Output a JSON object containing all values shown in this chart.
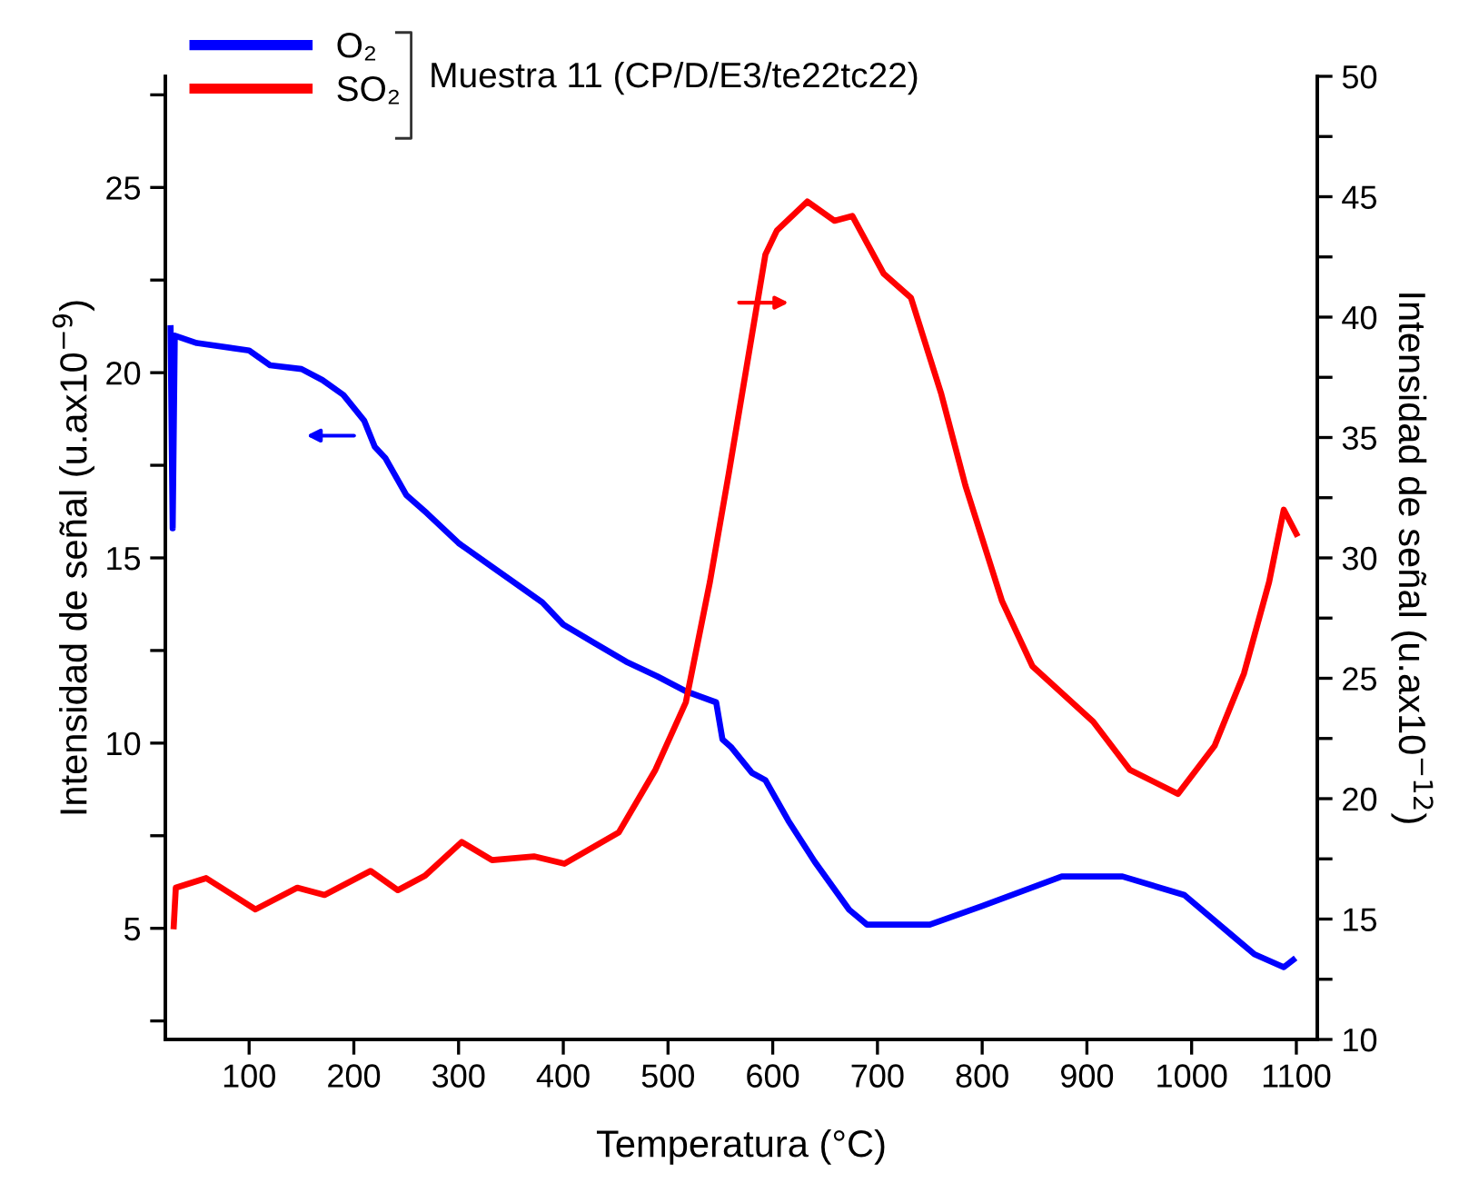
{
  "chart_data": {
    "type": "line",
    "xlabel": "Temperatura (°C)",
    "ylabel": "Intensidad de señal (u.ax10$^{−9}$)",
    "y2label": "Intensidad de señal (u.ax10$^{−12}$)",
    "legend_title": "Muestra 11 (CP/D/E3/te22tc22)",
    "legend": "top left",
    "grid": false,
    "marker": "none",
    "line_style": "solid",
    "xlim": [
      20,
      1120
    ],
    "xticks": [
      100,
      200,
      300,
      400,
      500,
      600,
      700,
      800,
      900,
      1000,
      1100
    ],
    "ylim": [
      2,
      28
    ],
    "yticks": [
      {
        "value": 2.5,
        "label": null
      },
      5,
      {
        "value": 7.5,
        "label": null
      },
      10,
      {
        "value": 12.5,
        "label": null
      },
      15,
      {
        "value": 17.5,
        "label": null
      },
      20,
      {
        "value": 22.5,
        "label": null
      },
      25,
      {
        "value": 27.5,
        "label": null
      }
    ],
    "y2lim": [
      10,
      50
    ],
    "y2ticks": [
      10,
      {
        "value": 12.5,
        "label": null
      },
      15,
      {
        "value": 17.5,
        "label": null
      },
      20,
      {
        "value": 22.5,
        "label": null
      },
      25,
      {
        "value": 27.5,
        "label": null
      },
      30,
      {
        "value": 32.5,
        "label": null
      },
      35,
      {
        "value": 37.5,
        "label": null
      },
      40,
      {
        "value": 42.5,
        "label": null
      },
      45,
      {
        "value": 47.5,
        "label": null
      },
      50
    ],
    "series": [
      {
        "name": "O₂",
        "color": "#0000ff",
        "x": [
          25,
          27,
          29,
          50,
          100,
          120,
          150,
          170,
          190,
          210,
          220,
          230,
          250,
          270,
          300,
          330,
          350,
          380,
          400,
          430,
          460,
          490,
          517,
          546,
          552,
          560,
          580,
          593,
          615,
          640,
          673,
          690,
          750,
          800,
          876,
          934,
          993,
          1039,
          1060,
          1088,
          1097
        ],
        "values": [
          21.2,
          15.8,
          21.0,
          20.8,
          20.6,
          20.2,
          20.1,
          19.8,
          19.4,
          18.7,
          18.0,
          17.7,
          16.7,
          16.2,
          15.4,
          14.8,
          14.4,
          13.8,
          13.2,
          12.7,
          12.2,
          11.8,
          11.4,
          11.1,
          10.1,
          9.9,
          9.2,
          9.0,
          7.9,
          6.8,
          5.5,
          5.1,
          5.1,
          5.6,
          6.4,
          6.4,
          5.9,
          4.8,
          4.3,
          3.95,
          4.15
        ]
      },
      {
        "name": "SO₂",
        "color": "#ff0000",
        "axis": "y2",
        "x": [
          28,
          30,
          59,
          106,
          146,
          172,
          216,
          242,
          268,
          303,
          332,
          372,
          401,
          453,
          488,
          517,
          540,
          558,
          593,
          604,
          633,
          659,
          676,
          706,
          732,
          761,
          784,
          819,
          848,
          906,
          941,
          987,
          1022,
          1050,
          1074,
          1088,
          1100
        ],
        "values": [
          14.7,
          16.3,
          16.7,
          15.4,
          16.3,
          16.0,
          17.0,
          16.2,
          16.8,
          18.2,
          17.45,
          17.6,
          17.3,
          18.6,
          21.2,
          24.0,
          29.0,
          33.5,
          42.6,
          43.6,
          44.8,
          44.0,
          44.2,
          41.8,
          40.8,
          36.8,
          33.0,
          28.2,
          25.5,
          23.2,
          21.2,
          20.2,
          22.2,
          25.2,
          29.0,
          32.0,
          31.0
        ]
      }
    ]
  }
}
